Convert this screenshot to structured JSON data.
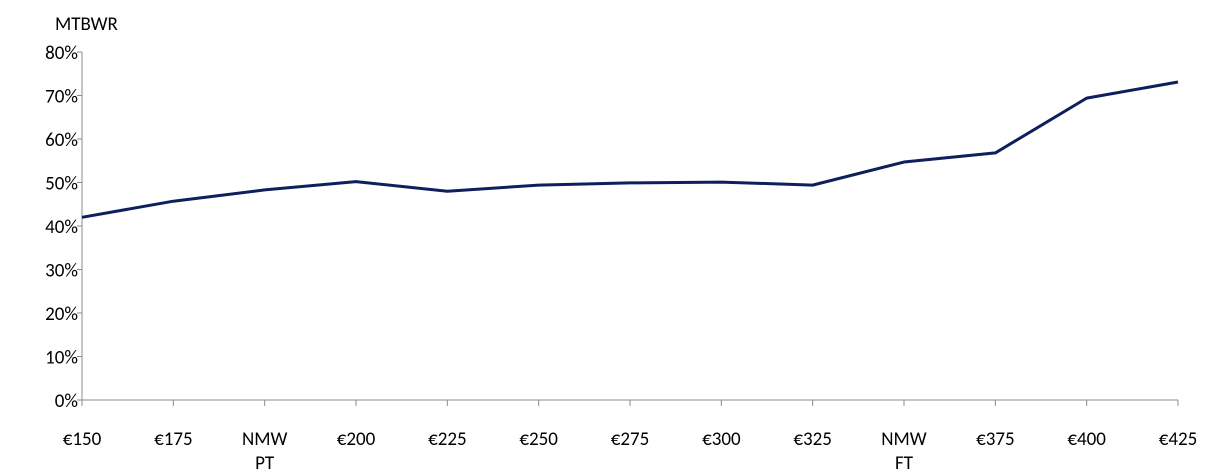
{
  "chart_data": {
    "type": "line",
    "title": "MTBWR",
    "categories": [
      "€150",
      "€175",
      "NMW\nPT",
      "€200",
      "€225",
      "€250",
      "€275",
      "€300",
      "€325",
      "NMW\nFT",
      "€375",
      "€400",
      "€425"
    ],
    "series": [
      {
        "name": "MTBWR",
        "color": "#0d1f5c",
        "values": [
          42,
          45.7,
          48.3,
          50.2,
          48,
          49.4,
          49.9,
          50.1,
          49.4,
          54.7,
          56.8,
          69.4,
          73.1
        ]
      }
    ],
    "ylim": [
      0,
      80
    ],
    "yticks": [
      {
        "value": 0,
        "label": "0%"
      },
      {
        "value": 10,
        "label": "10%"
      },
      {
        "value": 20,
        "label": "20%"
      },
      {
        "value": 30,
        "label": "30%"
      },
      {
        "value": 40,
        "label": "40%"
      },
      {
        "value": 50,
        "label": "50%"
      },
      {
        "value": 60,
        "label": "60%"
      },
      {
        "value": 70,
        "label": "70%"
      },
      {
        "value": 80,
        "label": "80%"
      }
    ],
    "grid": false
  }
}
